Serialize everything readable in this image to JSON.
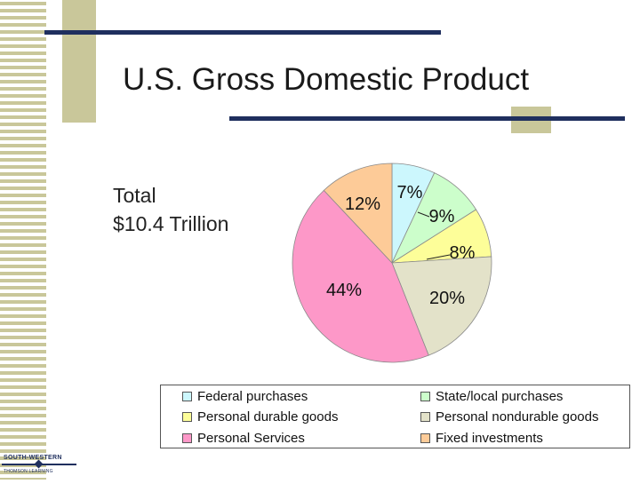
{
  "slide": {
    "title": "U.S. Gross Domestic Product",
    "total_line1": "Total",
    "total_line2": "$10.4 Trillion",
    "logo_line1": "SOUTH-WESTERN",
    "logo_line2": "THOMSON LEARNING"
  },
  "colors": {
    "stripe": "#c9c79a",
    "rule": "#1f2f5e",
    "slice_edge": "#8a8a8a"
  },
  "chart_data": {
    "type": "pie",
    "title": "",
    "slices": [
      {
        "label": "Federal purchases",
        "value": 7,
        "display": "7%",
        "color": "#ccf7fd"
      },
      {
        "label": "State/local purchases",
        "value": 9,
        "display": "9%",
        "color": "#ccfecb"
      },
      {
        "label": "Personal durable goods",
        "value": 8,
        "display": "8%",
        "color": "#fdfe99"
      },
      {
        "label": "Personal nondurable goods",
        "value": 20,
        "display": "20%",
        "color": "#e3e2c9"
      },
      {
        "label": "Personal Services",
        "value": 44,
        "display": "44%",
        "color": "#fd98c8"
      },
      {
        "label": "Fixed investments",
        "value": 12,
        "display": "12%",
        "color": "#fdcb98"
      }
    ],
    "legend_position": "bottom"
  }
}
